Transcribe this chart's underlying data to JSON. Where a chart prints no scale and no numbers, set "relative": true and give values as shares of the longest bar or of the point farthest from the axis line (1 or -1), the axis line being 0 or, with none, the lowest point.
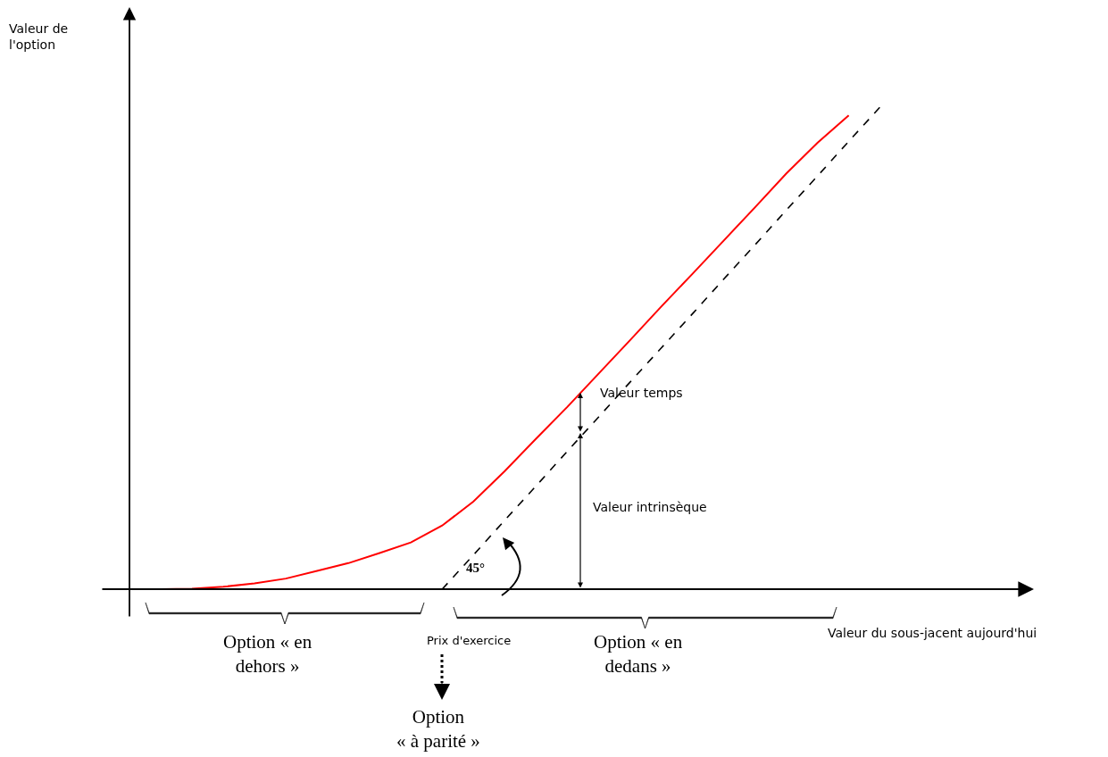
{
  "chart_data": {
    "type": "line",
    "relative": true,
    "xlabel": "Valeur du sous-jacent aujourd'hui",
    "marker": "none",
    "categories": [
      null,
      null,
      null,
      null,
      null,
      null,
      null,
      null,
      null,
      null,
      null,
      null,
      null,
      null,
      null,
      null,
      null,
      null,
      null,
      null,
      null,
      null,
      null,
      null,
      null
    ],
    "series": [
      {
        "color": "#ff0000",
        "line_style": "solid",
        "values": [
          0,
          0,
          0.001,
          0.005,
          0.012,
          0.022,
          0.038,
          0.054,
          0.075,
          0.097,
          0.132,
          0.182,
          0.245,
          0.312,
          0.378,
          0.447,
          0.516,
          0.586,
          0.654,
          0.723,
          0.792,
          0.862,
          0.926,
          0.983,
          null
        ]
      },
      {
        "color": "#000000",
        "line_style": "dashed",
        "values": [
          null,
          null,
          null,
          null,
          null,
          null,
          null,
          null,
          null,
          null,
          0,
          0.071,
          0.143,
          0.214,
          0.286,
          0.357,
          0.429,
          0.5,
          0.571,
          0.643,
          0.714,
          0.786,
          0.857,
          0.929,
          1
        ]
      }
    ],
    "annotations": [
      "Valeur de\nl'option",
      "Valeur temps",
      "Valeur intrinsèque",
      "45°",
      "Option « en\ndehors »",
      "Prix d'exercice",
      "Option « en\ndedans »",
      "Option\n« à parité »"
    ]
  }
}
